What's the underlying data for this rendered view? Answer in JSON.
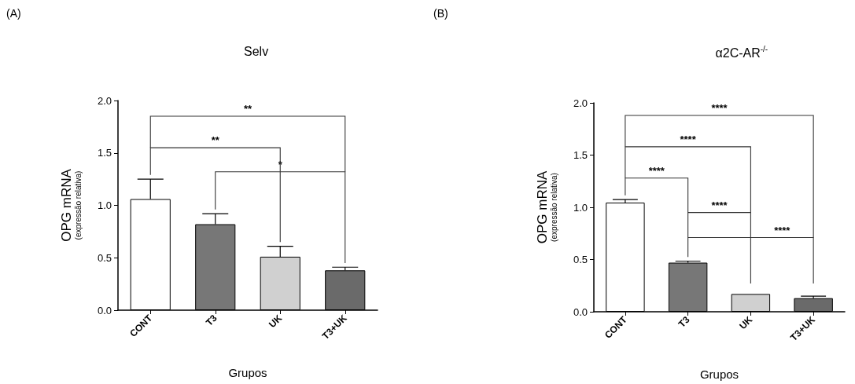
{
  "chart_data": [
    {
      "type": "bar",
      "title": "Selv",
      "xlabel": "Grupos",
      "ylabel": "OPG mRNA\n(expressão relativa)",
      "categories": [
        "CONT",
        "T3",
        "UK",
        "T3+UK"
      ],
      "values": [
        1.06,
        0.82,
        0.51,
        0.38
      ],
      "errors": [
        0.19,
        0.1,
        0.1,
        0.03
      ],
      "colors": [
        "#ffffff",
        "#777777",
        "#d0d0d0",
        "#6a6a6a"
      ],
      "ylim": [
        0,
        2
      ],
      "yticks": [
        {
          "value": 0,
          "label": "0.0"
        },
        {
          "value": 0.5,
          "label": "0.5"
        },
        {
          "value": 1,
          "label": "1.0"
        },
        {
          "value": 1.5,
          "label": "1.5"
        },
        {
          "value": 2,
          "label": "2.0"
        }
      ],
      "grid": false,
      "annotations": [
        "(A)",
        "**",
        "**",
        "*"
      ]
    },
    {
      "type": "bar",
      "title": "α2C-AR$^{-/-}$",
      "xlabel": "Grupos",
      "ylabel": "OPG mRNA\n(expressão relativa)",
      "categories": [
        "CONT",
        "T3",
        "UK",
        "T3+UK"
      ],
      "values": [
        1.045,
        0.47,
        0.17,
        0.13
      ],
      "errors": [
        0.03,
        0.015,
        null,
        0.02
      ],
      "colors": [
        "#ffffff",
        "#777777",
        "#d0d0d0",
        "#6a6a6a"
      ],
      "ylim": [
        0,
        2
      ],
      "yticks": [
        {
          "value": 0,
          "label": "0.0"
        },
        {
          "value": 0.5,
          "label": "0.5"
        },
        {
          "value": 1,
          "label": "1.0"
        },
        {
          "value": 1.5,
          "label": "1.5"
        },
        {
          "value": 2,
          "label": "2.0"
        }
      ],
      "grid": false,
      "annotations": [
        "(B)",
        "****",
        "****",
        "****",
        "****",
        "****"
      ]
    }
  ]
}
